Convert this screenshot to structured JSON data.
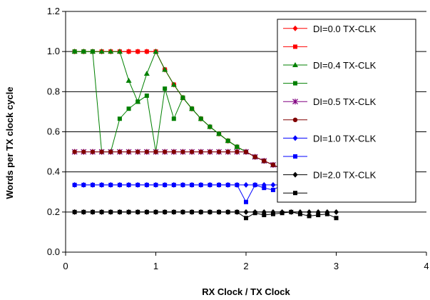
{
  "chart_data": {
    "type": "line",
    "title": "",
    "xlabel": "RX Clock / TX Clock",
    "ylabel": "Words per TX clock cycle",
    "xlim": [
      0,
      4
    ],
    "ylim": [
      0,
      1.2
    ],
    "xticks": [
      "0",
      "1",
      "2",
      "3",
      "4"
    ],
    "yticks": [
      "0.0",
      "0.2",
      "0.4",
      "0.6",
      "0.8",
      "1.0",
      "1.2"
    ],
    "grid": "horizontal",
    "legend_position": "top-right",
    "series": [
      {
        "name": "DI=0.0 TX-CLK",
        "color": "#ff0000",
        "marker": "diamond",
        "x": [
          0.1,
          0.2,
          0.3,
          0.4,
          0.5,
          0.6,
          0.7,
          0.8,
          0.9,
          1.0,
          1.1,
          1.2,
          1.3,
          1.4,
          1.5,
          1.6,
          1.7,
          1.8,
          1.9,
          2.0,
          2.1,
          2.2,
          2.3,
          2.4,
          2.5,
          2.6,
          2.7,
          2.8,
          2.9,
          3.0
        ],
        "y": [
          1.0,
          1.0,
          1.0,
          1.0,
          1.0,
          1.0,
          1.0,
          1.0,
          1.0,
          1.0,
          0.91,
          0.835,
          0.77,
          0.715,
          0.665,
          0.625,
          0.59,
          0.555,
          0.525,
          0.5,
          0.475,
          0.455,
          0.435,
          0.415,
          0.4,
          0.385,
          0.37,
          0.355,
          0.345,
          0.335
        ]
      },
      {
        "name": "",
        "color": "#ff0000",
        "marker": "square",
        "x": [
          0.1,
          0.2,
          0.3,
          0.4,
          0.5,
          0.6,
          0.7,
          0.8,
          0.9,
          1.0,
          1.1,
          1.2,
          1.3,
          1.4,
          1.5,
          1.6,
          1.7,
          1.8,
          1.9,
          2.0,
          2.1,
          2.2,
          2.3,
          2.4,
          2.5,
          2.6,
          2.7,
          2.8,
          2.9,
          3.0
        ],
        "y": [
          1.0,
          1.0,
          1.0,
          1.0,
          1.0,
          1.0,
          1.0,
          1.0,
          1.0,
          1.0,
          0.91,
          0.835,
          0.77,
          0.715,
          0.665,
          0.625,
          0.59,
          0.555,
          0.525,
          0.5,
          0.475,
          0.455,
          0.435,
          0.415,
          0.4,
          0.385,
          0.37,
          0.355,
          0.345,
          0.335
        ]
      },
      {
        "name": "DI=0.4 TX-CLK",
        "color": "#008000",
        "marker": "triangle",
        "x": [
          0.1,
          0.2,
          0.3,
          0.4,
          0.5,
          0.6,
          0.7,
          0.8,
          0.9,
          1.0,
          1.1,
          1.2,
          1.3,
          1.4,
          1.5,
          1.6,
          1.7,
          1.8,
          1.9,
          2.0,
          2.1,
          2.2,
          2.3,
          2.4,
          2.5,
          2.6,
          2.7,
          2.8,
          2.9,
          3.0
        ],
        "y": [
          1.0,
          1.0,
          1.0,
          1.0,
          1.0,
          1.0,
          0.855,
          0.75,
          0.89,
          1.0,
          0.91,
          0.835,
          0.77,
          0.715,
          0.665,
          0.625,
          0.59,
          0.555,
          0.525,
          0.5,
          0.475,
          0.455,
          0.435,
          0.415,
          0.4,
          0.385,
          0.37,
          0.355,
          0.345,
          0.335
        ]
      },
      {
        "name": "",
        "color": "#008000",
        "marker": "square",
        "x": [
          0.1,
          0.2,
          0.3,
          0.4,
          0.5,
          0.6,
          0.7,
          0.8,
          0.9,
          1.0,
          1.1,
          1.2,
          1.3,
          1.4,
          1.5,
          1.6,
          1.7,
          1.8,
          1.9,
          2.0,
          2.1,
          2.2,
          2.3,
          2.4,
          2.5,
          2.6,
          2.7,
          2.8,
          2.9,
          3.0
        ],
        "y": [
          1.0,
          1.0,
          1.0,
          0.5,
          0.5,
          0.665,
          0.715,
          0.75,
          0.78,
          0.5,
          0.815,
          0.665,
          0.77,
          0.715,
          0.665,
          0.625,
          0.59,
          0.555,
          0.525,
          0.5,
          0.475,
          0.455,
          0.435,
          0.415,
          0.4,
          0.385,
          0.37,
          0.355,
          0.345,
          0.335
        ]
      },
      {
        "name": "DI=0.5 TX-CLK",
        "color": "#800080",
        "marker": "star",
        "x": [
          0.1,
          0.2,
          0.3,
          0.4,
          0.5,
          0.6,
          0.7,
          0.8,
          0.9,
          1.0,
          1.1,
          1.2,
          1.3,
          1.4,
          1.5,
          1.6,
          1.7,
          1.8,
          1.9,
          2.0,
          2.1,
          2.2,
          2.3,
          2.4,
          2.5,
          2.6,
          2.7,
          2.8,
          2.9,
          3.0
        ],
        "y": [
          0.5,
          0.5,
          0.5,
          0.5,
          0.5,
          0.5,
          0.5,
          0.5,
          0.5,
          0.5,
          0.5,
          0.5,
          0.5,
          0.5,
          0.5,
          0.5,
          0.5,
          0.5,
          0.5,
          0.5,
          0.475,
          0.455,
          0.435,
          0.415,
          0.4,
          0.385,
          0.37,
          0.355,
          0.345,
          0.335
        ]
      },
      {
        "name": "",
        "color": "#800000",
        "marker": "circle",
        "x": [
          0.1,
          0.2,
          0.3,
          0.4,
          0.5,
          0.6,
          0.7,
          0.8,
          0.9,
          1.0,
          1.1,
          1.2,
          1.3,
          1.4,
          1.5,
          1.6,
          1.7,
          1.8,
          1.9,
          2.0,
          2.1,
          2.2,
          2.3,
          2.4,
          2.5,
          2.6,
          2.7,
          2.8,
          2.9,
          3.0
        ],
        "y": [
          0.5,
          0.5,
          0.5,
          0.5,
          0.5,
          0.5,
          0.5,
          0.5,
          0.5,
          0.5,
          0.5,
          0.5,
          0.5,
          0.5,
          0.5,
          0.5,
          0.5,
          0.5,
          0.5,
          0.5,
          0.475,
          0.455,
          0.435,
          0.415,
          0.4,
          0.385,
          0.37,
          0.355,
          0.345,
          0.335
        ]
      },
      {
        "name": "DI=1.0 TX-CLK",
        "color": "#0000ff",
        "marker": "diamond",
        "x": [
          0.1,
          0.2,
          0.3,
          0.4,
          0.5,
          0.6,
          0.7,
          0.8,
          0.9,
          1.0,
          1.1,
          1.2,
          1.3,
          1.4,
          1.5,
          1.6,
          1.7,
          1.8,
          1.9,
          2.0,
          2.1,
          2.2,
          2.3,
          2.4,
          2.5,
          2.6,
          2.7,
          2.8,
          2.9,
          3.0
        ],
        "y": [
          0.335,
          0.335,
          0.335,
          0.335,
          0.335,
          0.335,
          0.335,
          0.335,
          0.335,
          0.335,
          0.335,
          0.335,
          0.335,
          0.335,
          0.335,
          0.335,
          0.335,
          0.335,
          0.335,
          0.335,
          0.335,
          0.335,
          0.335,
          0.335,
          0.335,
          0.335,
          0.335,
          0.335,
          0.335,
          0.335
        ]
      },
      {
        "name": "",
        "color": "#0000ff",
        "marker": "square",
        "x": [
          0.1,
          0.2,
          0.3,
          0.4,
          0.5,
          0.6,
          0.7,
          0.8,
          0.9,
          1.0,
          1.1,
          1.2,
          1.3,
          1.4,
          1.5,
          1.6,
          1.7,
          1.8,
          1.9,
          2.0,
          2.1,
          2.2,
          2.3,
          2.4,
          2.5,
          2.6,
          2.7,
          2.8,
          2.9,
          3.0
        ],
        "y": [
          0.335,
          0.335,
          0.335,
          0.335,
          0.335,
          0.335,
          0.335,
          0.335,
          0.335,
          0.335,
          0.335,
          0.335,
          0.335,
          0.335,
          0.335,
          0.335,
          0.335,
          0.335,
          0.335,
          0.25,
          0.335,
          0.32,
          0.31,
          0.335,
          0.33,
          0.305,
          0.31,
          0.32,
          0.325,
          0.335
        ]
      },
      {
        "name": "DI=2.0 TX-CLK",
        "color": "#000000",
        "marker": "diamond",
        "x": [
          0.1,
          0.2,
          0.3,
          0.4,
          0.5,
          0.6,
          0.7,
          0.8,
          0.9,
          1.0,
          1.1,
          1.2,
          1.3,
          1.4,
          1.5,
          1.6,
          1.7,
          1.8,
          1.9,
          2.0,
          2.1,
          2.2,
          2.3,
          2.4,
          2.5,
          2.6,
          2.7,
          2.8,
          2.9,
          3.0
        ],
        "y": [
          0.2,
          0.2,
          0.2,
          0.2,
          0.2,
          0.2,
          0.2,
          0.2,
          0.2,
          0.2,
          0.2,
          0.2,
          0.2,
          0.2,
          0.2,
          0.2,
          0.2,
          0.2,
          0.2,
          0.2,
          0.2,
          0.2,
          0.2,
          0.2,
          0.2,
          0.2,
          0.2,
          0.2,
          0.2,
          0.2
        ]
      },
      {
        "name": "",
        "color": "#000000",
        "marker": "square",
        "x": [
          0.1,
          0.2,
          0.3,
          0.4,
          0.5,
          0.6,
          0.7,
          0.8,
          0.9,
          1.0,
          1.1,
          1.2,
          1.3,
          1.4,
          1.5,
          1.6,
          1.7,
          1.8,
          1.9,
          2.0,
          2.1,
          2.2,
          2.3,
          2.4,
          2.5,
          2.6,
          2.7,
          2.8,
          2.9,
          3.0
        ],
        "y": [
          0.2,
          0.2,
          0.2,
          0.2,
          0.2,
          0.2,
          0.2,
          0.2,
          0.2,
          0.2,
          0.2,
          0.2,
          0.2,
          0.2,
          0.2,
          0.2,
          0.2,
          0.2,
          0.2,
          0.17,
          0.195,
          0.185,
          0.19,
          0.195,
          0.2,
          0.19,
          0.18,
          0.185,
          0.19,
          0.17
        ]
      }
    ]
  }
}
